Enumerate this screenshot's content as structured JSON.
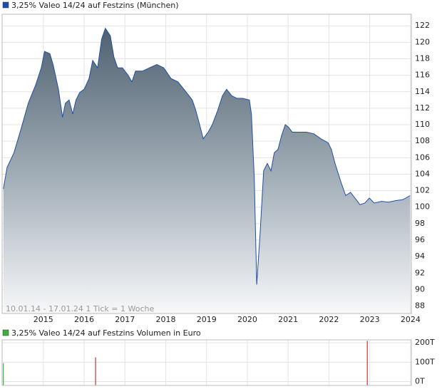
{
  "chart_data": [
    {
      "type": "area",
      "title": "3,25% Valeo 14/24 auf Festzins (München)",
      "footnote": "10.01.14 - 17.01.24   1 Tick = 1 Woche",
      "series": [
        {
          "color": "#1f4fa8",
          "x": [
            2014.02,
            2014.11,
            2014.28,
            2014.46,
            2014.63,
            2014.81,
            2014.95,
            2015.03,
            2015.16,
            2015.24,
            2015.37,
            2015.47,
            2015.54,
            2015.63,
            2015.72,
            2015.8,
            2015.89,
            2016.0,
            2016.12,
            2016.21,
            2016.33,
            2016.43,
            2016.52,
            2016.64,
            2016.73,
            2016.82,
            2016.94,
            2017.08,
            2017.17,
            2017.26,
            2017.43,
            2017.6,
            2017.78,
            2017.95,
            2018.13,
            2018.3,
            2018.51,
            2018.65,
            2018.74,
            2018.83,
            2018.92,
            2019.04,
            2019.14,
            2019.27,
            2019.39,
            2019.49,
            2019.62,
            2019.74,
            2019.88,
            2020.05,
            2020.1,
            2020.17,
            2020.23,
            2020.31,
            2020.4,
            2020.49,
            2020.58,
            2020.66,
            2020.75,
            2020.84,
            2020.93,
            2021.01,
            2021.1,
            2021.28,
            2021.45,
            2021.63,
            2021.8,
            2021.98,
            2022.06,
            2022.15,
            2022.29,
            2022.41,
            2022.53,
            2022.67,
            2022.76,
            2022.88,
            2022.99,
            2023.11,
            2023.29,
            2023.46,
            2023.64,
            2023.81,
            2023.99
          ],
          "values": [
            102.2,
            104.8,
            106.6,
            109.6,
            112.6,
            114.8,
            116.9,
            118.9,
            118.6,
            117.3,
            114.3,
            110.9,
            112.6,
            113.0,
            111.3,
            113.0,
            113.9,
            114.3,
            115.6,
            117.8,
            116.9,
            120.4,
            121.7,
            120.8,
            118.2,
            116.9,
            116.9,
            116.0,
            115.2,
            116.5,
            116.5,
            116.9,
            117.3,
            116.9,
            115.6,
            115.2,
            113.9,
            113.0,
            111.7,
            110.0,
            108.3,
            109.1,
            110.0,
            111.7,
            113.5,
            114.3,
            113.5,
            113.2,
            113.2,
            113.0,
            111.3,
            103.5,
            90.6,
            96.6,
            104.4,
            105.3,
            104.4,
            106.6,
            107.0,
            108.7,
            110.0,
            109.7,
            109.1,
            109.1,
            109.1,
            108.9,
            108.3,
            107.8,
            107.0,
            105.3,
            103.1,
            101.4,
            101.8,
            100.9,
            100.3,
            100.5,
            101.1,
            100.5,
            100.7,
            100.6,
            100.8,
            100.9,
            101.4
          ]
        }
      ],
      "xlim": [
        2013.99,
        2024.02
      ],
      "xticks": [
        2015,
        2016,
        2017,
        2018,
        2019,
        2020,
        2021,
        2022,
        2023,
        2024
      ],
      "ylim": [
        87.1,
        123.4
      ],
      "yticks": [
        88,
        90,
        92,
        94,
        96,
        98,
        100,
        102,
        104,
        106,
        108,
        110,
        112,
        114,
        116,
        118,
        120,
        122
      ],
      "grid": true
    },
    {
      "type": "bar",
      "title": "3,25% Valeo 14/24 auf Festzins Volumen in Euro",
      "x": [
        2014.02,
        2016.28,
        2022.94
      ],
      "values": [
        95000,
        125000,
        210000
      ],
      "colors": [
        "#3cb043",
        "#c0392b",
        "#c0392b"
      ],
      "xlim": [
        2013.99,
        2024.02
      ],
      "xticks": [
        2015,
        2016,
        2017,
        2018,
        2019,
        2020,
        2021,
        2022,
        2023,
        2024
      ],
      "ylim": [
        -20000,
        215000
      ],
      "yticks": [
        {
          "value": 0,
          "label": "0T"
        },
        {
          "value": 100000,
          "label": "100T"
        },
        {
          "value": 200000,
          "label": "200T"
        }
      ],
      "grid": true
    }
  ]
}
